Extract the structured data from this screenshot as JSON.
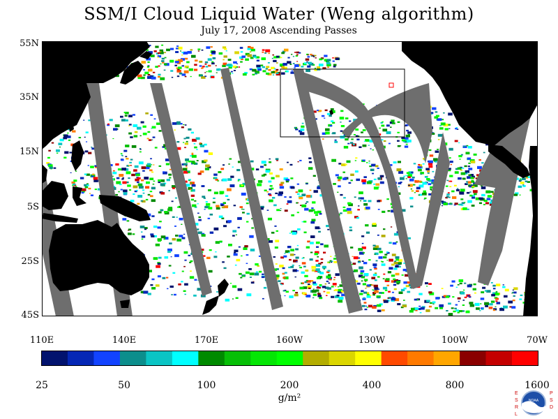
{
  "header": {
    "title": "SSM/I Cloud Liquid Water (Weng algorithm)",
    "subtitle": "July 17, 2008  Ascending Passes"
  },
  "map": {
    "lat_labels": [
      "55N",
      "35N",
      "15N",
      "5S",
      "25S",
      "45S"
    ],
    "lon_labels": [
      "110E",
      "140E",
      "170E",
      "160W",
      "130W",
      "100W",
      "70W"
    ],
    "colors": {
      "ocean_clear": "#ffffff",
      "land": "#000000",
      "no_data_swath_gap": "#6e6e6e",
      "box_outline": "#000000"
    }
  },
  "colorbar": {
    "units": "g/m²",
    "tick_labels": [
      "25",
      "50",
      "100",
      "200",
      "400",
      "800",
      "1600"
    ],
    "colors": [
      "#02136e",
      "#0527b5",
      "#1243ff",
      "#0c8e8c",
      "#0ac4c4",
      "#00ffff",
      "#008a00",
      "#06bf06",
      "#04e604",
      "#00ff00",
      "#b3ad00",
      "#dbd600",
      "#ffff00",
      "#ff4a00",
      "#ff7a00",
      "#ffa600",
      "#8a0000",
      "#c40000",
      "#ff0000"
    ]
  },
  "logo": {
    "left_letters": "ESRL",
    "right_letters": "PSD",
    "center_text": "NOAA"
  }
}
